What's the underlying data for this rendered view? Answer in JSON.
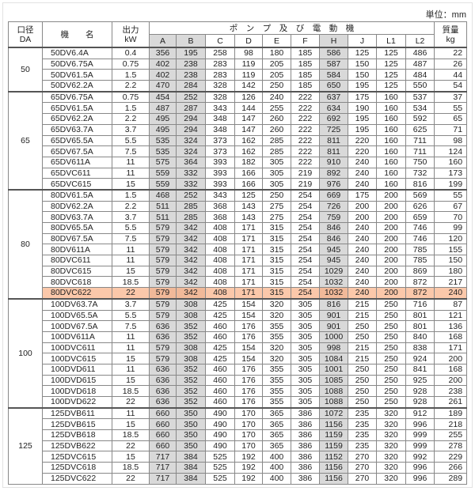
{
  "unit_label": "単位：mm",
  "headers": {
    "da": [
      "口径",
      "DA"
    ],
    "model": "機　　名",
    "power": [
      "出力",
      "kW"
    ],
    "group": "ポ　ン　プ　及　び　電　動　機",
    "dims": [
      "A",
      "B",
      "C",
      "D",
      "E",
      "F",
      "H",
      "J",
      "L1",
      "L2"
    ],
    "mass": [
      "質量",
      "kg"
    ]
  },
  "shaded_columns": [
    "A",
    "B",
    "H"
  ],
  "highlight_color": "#fbc8aa",
  "highlighted_model": "80DVC622",
  "groups": [
    {
      "da": "50",
      "rows": [
        [
          "50DV6.4A",
          "0.4",
          "356",
          "195",
          "258",
          "98",
          "180",
          "185",
          "586",
          "125",
          "125",
          "486",
          "22"
        ],
        [
          "50DV6.75A",
          "0.75",
          "402",
          "238",
          "283",
          "119",
          "205",
          "185",
          "587",
          "150",
          "125",
          "487",
          "26"
        ],
        [
          "50DV61.5A",
          "1.5",
          "402",
          "238",
          "283",
          "119",
          "205",
          "185",
          "584",
          "150",
          "125",
          "484",
          "44"
        ],
        [
          "50DV62.2A",
          "2.2",
          "470",
          "284",
          "328",
          "142",
          "250",
          "185",
          "650",
          "195",
          "125",
          "550",
          "54"
        ]
      ]
    },
    {
      "da": "65",
      "rows": [
        [
          "65DV6.75A",
          "0.75",
          "454",
          "252",
          "328",
          "126",
          "240",
          "222",
          "637",
          "175",
          "160",
          "537",
          "37"
        ],
        [
          "65DV61.5A",
          "1.5",
          "487",
          "287",
          "343",
          "144",
          "255",
          "222",
          "634",
          "190",
          "160",
          "534",
          "55"
        ],
        [
          "65DV62.2A",
          "2.2",
          "495",
          "294",
          "348",
          "147",
          "260",
          "222",
          "692",
          "195",
          "160",
          "592",
          "65"
        ],
        [
          "65DV63.7A",
          "3.7",
          "495",
          "294",
          "348",
          "147",
          "260",
          "222",
          "725",
          "195",
          "160",
          "625",
          "71"
        ],
        [
          "65DV65.5A",
          "5.5",
          "535",
          "324",
          "373",
          "162",
          "285",
          "222",
          "811",
          "220",
          "160",
          "711",
          "98"
        ],
        [
          "65DV67.5A",
          "7.5",
          "535",
          "324",
          "373",
          "162",
          "285",
          "222",
          "811",
          "220",
          "160",
          "711",
          "124"
        ],
        [
          "65DV611A",
          "11",
          "575",
          "364",
          "393",
          "182",
          "305",
          "222",
          "910",
          "240",
          "160",
          "750",
          "160"
        ],
        [
          "65DVC611",
          "11",
          "559",
          "332",
          "393",
          "166",
          "305",
          "219",
          "892",
          "240",
          "160",
          "732",
          "173"
        ],
        [
          "65DVC615",
          "15",
          "559",
          "332",
          "393",
          "166",
          "305",
          "219",
          "976",
          "240",
          "160",
          "816",
          "199"
        ]
      ]
    },
    {
      "da": "80",
      "rows": [
        [
          "80DV61.5A",
          "1.5",
          "468",
          "252",
          "343",
          "125",
          "250",
          "254",
          "669",
          "175",
          "200",
          "569",
          "55"
        ],
        [
          "80DV62.2A",
          "2.2",
          "511",
          "285",
          "368",
          "143",
          "275",
          "254",
          "726",
          "200",
          "200",
          "626",
          "67"
        ],
        [
          "80DV63.7A",
          "3.7",
          "511",
          "285",
          "368",
          "143",
          "275",
          "254",
          "759",
          "200",
          "200",
          "659",
          "70"
        ],
        [
          "80DV65.5A",
          "5.5",
          "579",
          "342",
          "408",
          "171",
          "315",
          "254",
          "846",
          "240",
          "200",
          "746",
          "99"
        ],
        [
          "80DV67.5A",
          "7.5",
          "579",
          "342",
          "408",
          "171",
          "315",
          "254",
          "846",
          "240",
          "200",
          "746",
          "120"
        ],
        [
          "80DV611A",
          "11",
          "579",
          "342",
          "408",
          "171",
          "315",
          "254",
          "945",
          "240",
          "200",
          "785",
          "155"
        ],
        [
          "80DVC611",
          "11",
          "579",
          "342",
          "408",
          "171",
          "315",
          "254",
          "945",
          "240",
          "200",
          "785",
          "150"
        ],
        [
          "80DVC615",
          "15",
          "579",
          "342",
          "408",
          "171",
          "315",
          "254",
          "1029",
          "240",
          "200",
          "869",
          "180"
        ],
        [
          "80DVC618",
          "18.5",
          "579",
          "342",
          "408",
          "171",
          "315",
          "254",
          "1032",
          "240",
          "200",
          "872",
          "217"
        ],
        [
          "80DVC622",
          "22",
          "579",
          "342",
          "408",
          "171",
          "315",
          "254",
          "1032",
          "240",
          "200",
          "872",
          "240"
        ]
      ]
    },
    {
      "da": "100",
      "rows": [
        [
          "100DV63.7A",
          "3.7",
          "579",
          "308",
          "425",
          "154",
          "320",
          "305",
          "816",
          "215",
          "250",
          "716",
          "87"
        ],
        [
          "100DV65.5A",
          "5.5",
          "579",
          "308",
          "425",
          "154",
          "320",
          "305",
          "901",
          "215",
          "250",
          "801",
          "121"
        ],
        [
          "100DV67.5A",
          "7.5",
          "636",
          "352",
          "460",
          "176",
          "355",
          "305",
          "901",
          "250",
          "250",
          "801",
          "136"
        ],
        [
          "100DV611A",
          "11",
          "636",
          "352",
          "460",
          "176",
          "355",
          "305",
          "1000",
          "250",
          "250",
          "840",
          "168"
        ],
        [
          "100DVC611",
          "11",
          "579",
          "308",
          "425",
          "154",
          "320",
          "305",
          "998",
          "215",
          "250",
          "838",
          "171"
        ],
        [
          "100DVC615",
          "15",
          "579",
          "308",
          "425",
          "154",
          "320",
          "305",
          "1084",
          "215",
          "250",
          "924",
          "200"
        ],
        [
          "100DVD611",
          "11",
          "636",
          "352",
          "460",
          "176",
          "355",
          "305",
          "1001",
          "250",
          "250",
          "841",
          "168"
        ],
        [
          "100DVD615",
          "15",
          "636",
          "352",
          "460",
          "176",
          "355",
          "305",
          "1085",
          "250",
          "250",
          "925",
          "200"
        ],
        [
          "100DVD618",
          "18.5",
          "636",
          "352",
          "460",
          "176",
          "355",
          "305",
          "1088",
          "250",
          "250",
          "928",
          "238"
        ],
        [
          "100DVD622",
          "22",
          "636",
          "352",
          "460",
          "176",
          "355",
          "305",
          "1088",
          "250",
          "250",
          "928",
          "261"
        ]
      ]
    },
    {
      "da": "125",
      "rows": [
        [
          "125DVB611",
          "11",
          "660",
          "350",
          "490",
          "170",
          "365",
          "386",
          "1072",
          "235",
          "320",
          "912",
          "189"
        ],
        [
          "125DVB615",
          "15",
          "660",
          "350",
          "490",
          "170",
          "365",
          "386",
          "1156",
          "235",
          "320",
          "996",
          "218"
        ],
        [
          "125DVB618",
          "18.5",
          "660",
          "350",
          "490",
          "170",
          "365",
          "386",
          "1159",
          "235",
          "320",
          "999",
          "255"
        ],
        [
          "125DVB622",
          "22",
          "660",
          "350",
          "490",
          "170",
          "365",
          "386",
          "1159",
          "235",
          "320",
          "999",
          "278"
        ],
        [
          "125DVC615",
          "15",
          "717",
          "384",
          "525",
          "192",
          "400",
          "386",
          "1152",
          "270",
          "320",
          "992",
          "229"
        ],
        [
          "125DVC618",
          "18.5",
          "717",
          "384",
          "525",
          "192",
          "400",
          "386",
          "1156",
          "270",
          "320",
          "996",
          "266"
        ],
        [
          "125DVC622",
          "22",
          "717",
          "384",
          "525",
          "192",
          "400",
          "386",
          "1156",
          "270",
          "320",
          "996",
          "289"
        ]
      ]
    }
  ]
}
